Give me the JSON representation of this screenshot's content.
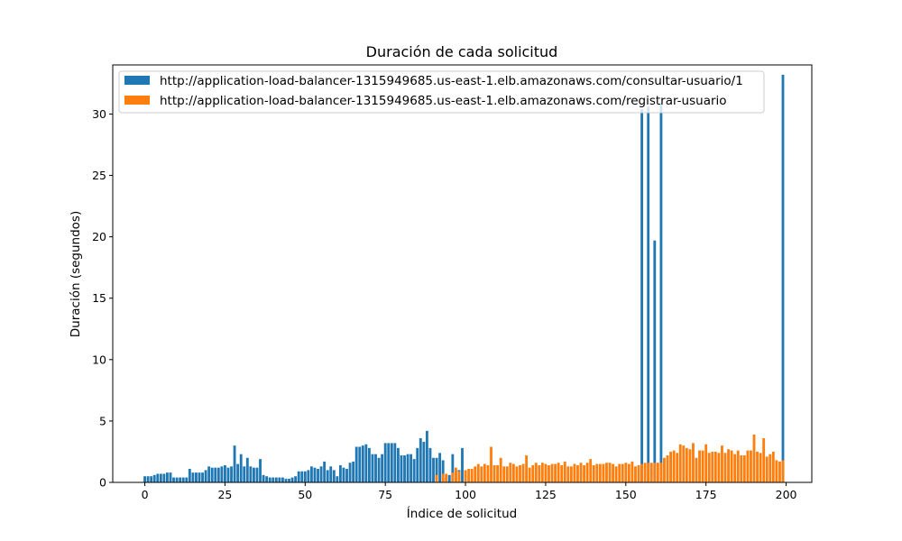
{
  "chart_data": {
    "type": "bar",
    "title": "Duración de cada solicitud",
    "xlabel": "Índice de solicitud",
    "ylabel": "Duración (segundos)",
    "xlim": [
      -10,
      208
    ],
    "ylim": [
      0,
      34
    ],
    "xticks": [
      0,
      25,
      50,
      75,
      100,
      125,
      150,
      175,
      200
    ],
    "yticks": [
      0,
      5,
      10,
      15,
      20,
      25,
      30
    ],
    "grid": false,
    "legend_position": "top-left",
    "series": [
      {
        "name": "http://application-load-balancer-1315949685.us-east-1.elb.amazonaws.com/consultar-usuario/1",
        "color": "#1f77b4",
        "points": [
          [
            0,
            0.5
          ],
          [
            1,
            0.5
          ],
          [
            2,
            0.5
          ],
          [
            3,
            0.6
          ],
          [
            4,
            0.7
          ],
          [
            5,
            0.7
          ],
          [
            6,
            0.7
          ],
          [
            7,
            0.8
          ],
          [
            8,
            0.8
          ],
          [
            9,
            0.4
          ],
          [
            10,
            0.4
          ],
          [
            11,
            0.4
          ],
          [
            12,
            0.4
          ],
          [
            13,
            0.4
          ],
          [
            14,
            1.1
          ],
          [
            15,
            0.8
          ],
          [
            16,
            0.8
          ],
          [
            17,
            0.8
          ],
          [
            18,
            0.8
          ],
          [
            19,
            1.0
          ],
          [
            20,
            1.3
          ],
          [
            21,
            1.2
          ],
          [
            22,
            1.2
          ],
          [
            23,
            1.2
          ],
          [
            24,
            1.3
          ],
          [
            25,
            1.4
          ],
          [
            26,
            1.2
          ],
          [
            27,
            1.3
          ],
          [
            28,
            3.0
          ],
          [
            29,
            1.5
          ],
          [
            30,
            2.3
          ],
          [
            31,
            1.3
          ],
          [
            32,
            2.0
          ],
          [
            33,
            1.3
          ],
          [
            34,
            1.2
          ],
          [
            35,
            1.2
          ],
          [
            36,
            1.9
          ],
          [
            37,
            0.6
          ],
          [
            38,
            0.5
          ],
          [
            39,
            0.4
          ],
          [
            40,
            0.4
          ],
          [
            41,
            0.4
          ],
          [
            42,
            0.4
          ],
          [
            43,
            0.4
          ],
          [
            44,
            0.3
          ],
          [
            45,
            0.3
          ],
          [
            46,
            0.4
          ],
          [
            47,
            0.5
          ],
          [
            48,
            0.9
          ],
          [
            49,
            0.9
          ],
          [
            50,
            0.9
          ],
          [
            51,
            1.0
          ],
          [
            52,
            1.3
          ],
          [
            53,
            1.2
          ],
          [
            54,
            1.1
          ],
          [
            55,
            1.3
          ],
          [
            56,
            1.7
          ],
          [
            57,
            1.0
          ],
          [
            58,
            1.3
          ],
          [
            59,
            1.0
          ],
          [
            60,
            0.5
          ],
          [
            61,
            1.4
          ],
          [
            62,
            1.2
          ],
          [
            63,
            1.1
          ],
          [
            64,
            1.6
          ],
          [
            65,
            1.7
          ],
          [
            66,
            2.9
          ],
          [
            67,
            2.9
          ],
          [
            68,
            3.0
          ],
          [
            69,
            3.1
          ],
          [
            70,
            2.8
          ],
          [
            71,
            2.3
          ],
          [
            72,
            2.3
          ],
          [
            73,
            2.0
          ],
          [
            74,
            2.3
          ],
          [
            75,
            3.2
          ],
          [
            76,
            3.2
          ],
          [
            77,
            3.2
          ],
          [
            78,
            3.2
          ],
          [
            79,
            2.8
          ],
          [
            80,
            2.2
          ],
          [
            81,
            2.2
          ],
          [
            82,
            2.3
          ],
          [
            83,
            2.3
          ],
          [
            84,
            1.9
          ],
          [
            85,
            2.8
          ],
          [
            86,
            3.6
          ],
          [
            87,
            3.3
          ],
          [
            88,
            4.2
          ],
          [
            89,
            2.8
          ],
          [
            90,
            2.0
          ],
          [
            91,
            2.0
          ],
          [
            92,
            2.4
          ],
          [
            93,
            1.8
          ],
          [
            94,
            0.6
          ],
          [
            95,
            0.6
          ],
          [
            96,
            2.3
          ],
          [
            97,
            1.0
          ],
          [
            98,
            1.0
          ],
          [
            99,
            2.8
          ],
          [
            155,
            30.4
          ],
          [
            157,
            30.6
          ],
          [
            159,
            19.7
          ],
          [
            161,
            30.9
          ],
          [
            199,
            33.2
          ]
        ]
      },
      {
        "name": "http://application-load-balancer-1315949685.us-east-1.elb.amazonaws.com/registrar-usuario",
        "color": "#ff7f0e",
        "points": [
          [
            91,
            0.6
          ],
          [
            93,
            0.7
          ],
          [
            94,
            0.7
          ],
          [
            96,
            0.8
          ],
          [
            97,
            1.2
          ],
          [
            98,
            0.9
          ],
          [
            100,
            1.0
          ],
          [
            101,
            1.1
          ],
          [
            102,
            1.1
          ],
          [
            103,
            1.3
          ],
          [
            104,
            1.5
          ],
          [
            105,
            1.3
          ],
          [
            106,
            1.5
          ],
          [
            107,
            1.4
          ],
          [
            108,
            2.9
          ],
          [
            109,
            1.4
          ],
          [
            110,
            1.4
          ],
          [
            111,
            2.0
          ],
          [
            112,
            1.3
          ],
          [
            113,
            1.3
          ],
          [
            114,
            1.6
          ],
          [
            115,
            1.5
          ],
          [
            116,
            1.3
          ],
          [
            117,
            1.4
          ],
          [
            118,
            1.5
          ],
          [
            119,
            2.2
          ],
          [
            120,
            1.2
          ],
          [
            121,
            1.4
          ],
          [
            122,
            1.6
          ],
          [
            123,
            1.4
          ],
          [
            124,
            1.6
          ],
          [
            125,
            1.5
          ],
          [
            126,
            1.4
          ],
          [
            127,
            1.5
          ],
          [
            128,
            1.5
          ],
          [
            129,
            1.6
          ],
          [
            130,
            1.4
          ],
          [
            131,
            1.7
          ],
          [
            132,
            1.3
          ],
          [
            133,
            1.3
          ],
          [
            134,
            1.5
          ],
          [
            135,
            1.4
          ],
          [
            136,
            1.6
          ],
          [
            137,
            1.4
          ],
          [
            138,
            1.6
          ],
          [
            139,
            1.9
          ],
          [
            140,
            1.4
          ],
          [
            141,
            1.5
          ],
          [
            142,
            1.5
          ],
          [
            143,
            1.5
          ],
          [
            144,
            1.6
          ],
          [
            145,
            1.6
          ],
          [
            146,
            1.5
          ],
          [
            147,
            1.3
          ],
          [
            148,
            1.5
          ],
          [
            149,
            1.5
          ],
          [
            150,
            1.6
          ],
          [
            151,
            1.5
          ],
          [
            152,
            1.7
          ],
          [
            153,
            1.3
          ],
          [
            154,
            1.4
          ],
          [
            155,
            1.5
          ],
          [
            156,
            1.6
          ],
          [
            157,
            1.6
          ],
          [
            158,
            1.6
          ],
          [
            159,
            1.6
          ],
          [
            160,
            1.6
          ],
          [
            161,
            1.6
          ],
          [
            162,
            2.0
          ],
          [
            163,
            2.2
          ],
          [
            164,
            2.5
          ],
          [
            165,
            2.6
          ],
          [
            166,
            2.4
          ],
          [
            167,
            3.1
          ],
          [
            168,
            3.0
          ],
          [
            169,
            2.8
          ],
          [
            170,
            2.7
          ],
          [
            171,
            3.2
          ],
          [
            172,
            2.0
          ],
          [
            173,
            2.6
          ],
          [
            174,
            2.6
          ],
          [
            175,
            3.1
          ],
          [
            176,
            2.4
          ],
          [
            177,
            2.5
          ],
          [
            178,
            2.5
          ],
          [
            179,
            2.4
          ],
          [
            180,
            3.0
          ],
          [
            181,
            2.4
          ],
          [
            182,
            2.7
          ],
          [
            183,
            2.6
          ],
          [
            184,
            2.3
          ],
          [
            185,
            2.6
          ],
          [
            186,
            2.2
          ],
          [
            187,
            2.2
          ],
          [
            188,
            2.6
          ],
          [
            189,
            2.6
          ],
          [
            190,
            3.9
          ],
          [
            191,
            2.5
          ],
          [
            192,
            2.4
          ],
          [
            193,
            3.6
          ],
          [
            194,
            2.1
          ],
          [
            195,
            2.3
          ],
          [
            196,
            2.5
          ],
          [
            197,
            1.8
          ],
          [
            198,
            1.7
          ],
          [
            199,
            1.8
          ]
        ]
      }
    ]
  }
}
